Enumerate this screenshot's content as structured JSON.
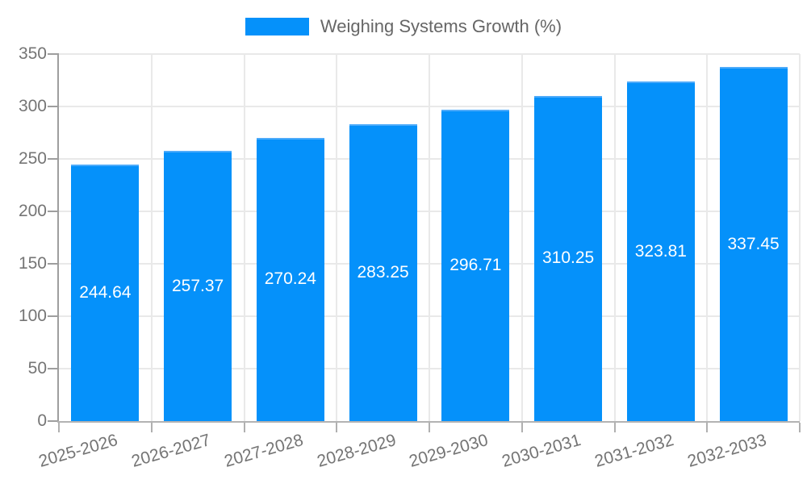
{
  "chart_data": {
    "type": "bar",
    "title": "Weighing Systems Growth (%)",
    "categories": [
      "2025-2026",
      "2026-2027",
      "2027-2028",
      "2028-2029",
      "2029-2030",
      "2030-2031",
      "2031-2032",
      "2032-2033"
    ],
    "values": [
      244.64,
      257.37,
      270.24,
      283.25,
      296.71,
      310.25,
      323.81,
      337.45
    ],
    "yticks": [
      0,
      50,
      100,
      150,
      200,
      250,
      300,
      350
    ],
    "ylim": [
      0,
      350
    ],
    "xlabel": "",
    "ylabel": "",
    "grid": true,
    "legend_position": "top",
    "colors": {
      "bar_fill": "#0591fa",
      "bar_border_top": "#4dabfa",
      "grid": "#e9e9e9",
      "y_axis_line": "#9e9e9e",
      "x_axis_line": "#b3b3b3",
      "tick_mark": "#b0b0b0",
      "tick_text": "#757575",
      "legend_text": "#666666",
      "value_text": "#ffffff"
    }
  }
}
